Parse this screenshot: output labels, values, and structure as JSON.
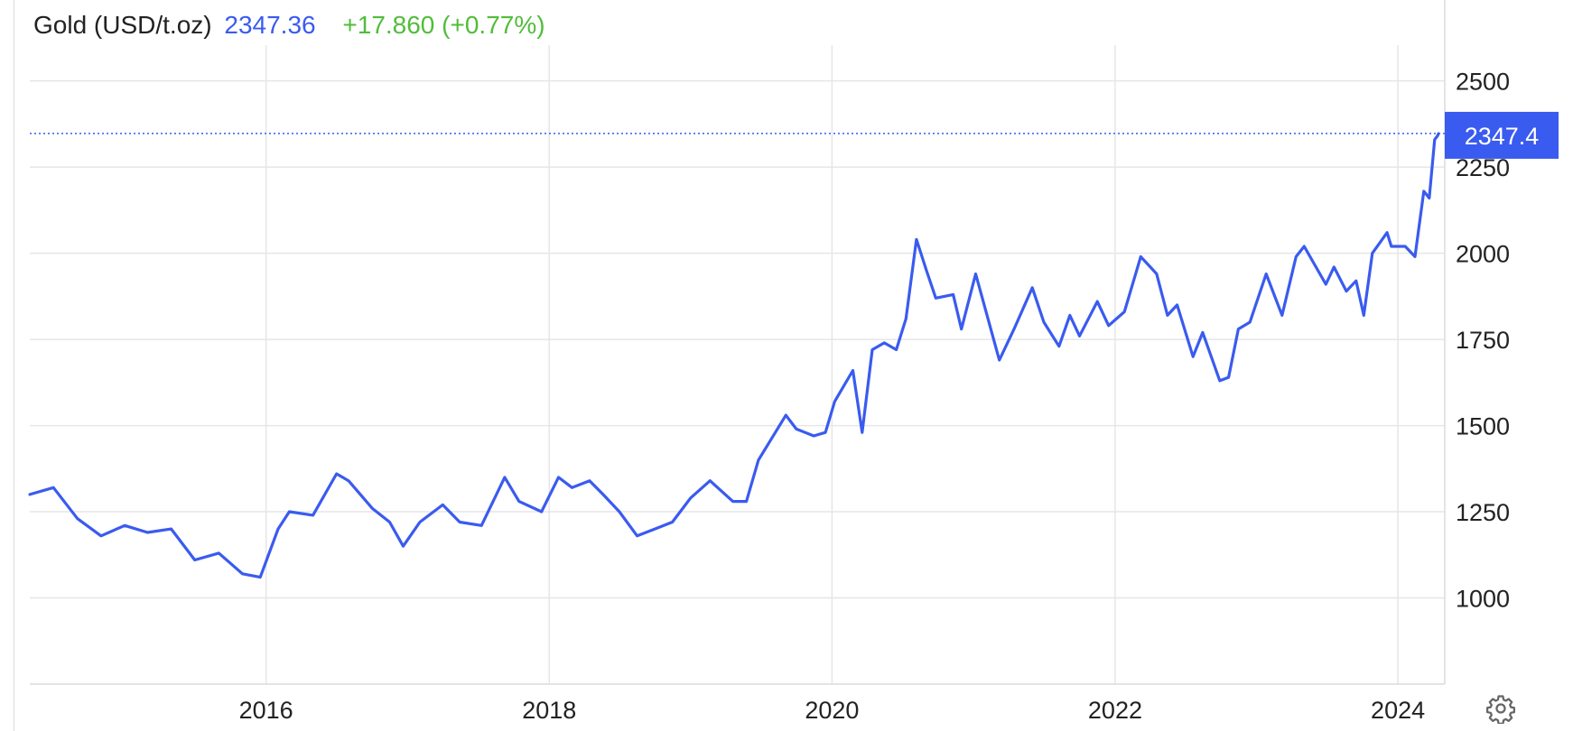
{
  "header": {
    "name": "Gold (USD/t.oz)",
    "price": "2347.36",
    "change": "+17.860 (+0.77%)"
  },
  "last_price_label": "2347.4",
  "settings_icon": "gear-icon",
  "colors": {
    "line": "#3a5bef",
    "change_positive": "#51bd3a",
    "grid": "#e6e6e6",
    "price_tag": "#3a5bef"
  },
  "chart_data": {
    "type": "line",
    "title": "",
    "xlabel": "",
    "ylabel": "",
    "x_ticks": [
      "2016",
      "2018",
      "2020",
      "2022",
      "2024"
    ],
    "y_ticks": [
      1000,
      1250,
      1500,
      1750,
      2000,
      2250,
      2500
    ],
    "xlim": [
      "2014-05-01",
      "2024-05-01"
    ],
    "ylim": [
      750,
      2630
    ],
    "grid": true,
    "last_value": 2347.4,
    "series": [
      {
        "name": "",
        "x": [
          "2014-05-01",
          "2014-07-01",
          "2014-09-01",
          "2014-11-01",
          "2015-01-01",
          "2015-03-01",
          "2015-05-01",
          "2015-07-01",
          "2015-09-01",
          "2015-11-01",
          "2015-12-17",
          "2016-02-01",
          "2016-03-01",
          "2016-05-01",
          "2016-07-01",
          "2016-08-01",
          "2016-10-01",
          "2016-11-15",
          "2016-12-20",
          "2017-02-01",
          "2017-04-01",
          "2017-05-15",
          "2017-07-10",
          "2017-09-08",
          "2017-10-15",
          "2017-12-12",
          "2018-01-25",
          "2018-03-01",
          "2018-04-15",
          "2018-05-20",
          "2018-07-01",
          "2018-08-16",
          "2018-10-01",
          "2018-11-15",
          "2019-01-01",
          "2019-02-20",
          "2019-04-20",
          "2019-05-25",
          "2019-06-25",
          "2019-09-04",
          "2019-10-01",
          "2019-11-15",
          "2019-12-15",
          "2020-01-08",
          "2020-02-24",
          "2020-03-19",
          "2020-04-14",
          "2020-05-15",
          "2020-06-15",
          "2020-07-10",
          "2020-08-06",
          "2020-09-01",
          "2020-09-25",
          "2020-11-09",
          "2020-11-30",
          "2021-01-06",
          "2021-03-08",
          "2021-04-15",
          "2021-06-01",
          "2021-07-01",
          "2021-08-09",
          "2021-09-06",
          "2021-10-01",
          "2021-11-16",
          "2021-12-15",
          "2022-01-25",
          "2022-03-08",
          "2022-04-18",
          "2022-05-16",
          "2022-06-10",
          "2022-07-21",
          "2022-08-15",
          "2022-09-28",
          "2022-10-21",
          "2022-11-15",
          "2022-12-15",
          "2023-01-26",
          "2023-03-08",
          "2023-04-13",
          "2023-05-04",
          "2023-06-29",
          "2023-07-20",
          "2023-08-21",
          "2023-09-15",
          "2023-10-05",
          "2023-10-27",
          "2023-12-04",
          "2023-12-15",
          "2024-01-20",
          "2024-02-14",
          "2024-03-08",
          "2024-03-22",
          "2024-04-05",
          "2024-04-12",
          "2024-04-15"
        ],
        "values": [
          1300,
          1320,
          1230,
          1180,
          1210,
          1190,
          1200,
          1110,
          1130,
          1070,
          1060,
          1200,
          1250,
          1240,
          1360,
          1340,
          1260,
          1220,
          1150,
          1220,
          1270,
          1220,
          1210,
          1350,
          1280,
          1250,
          1350,
          1320,
          1340,
          1300,
          1250,
          1180,
          1200,
          1220,
          1290,
          1340,
          1280,
          1280,
          1400,
          1530,
          1490,
          1470,
          1480,
          1570,
          1660,
          1480,
          1720,
          1740,
          1720,
          1810,
          2040,
          1950,
          1870,
          1880,
          1780,
          1940,
          1690,
          1780,
          1900,
          1800,
          1730,
          1820,
          1760,
          1860,
          1790,
          1830,
          1990,
          1940,
          1820,
          1850,
          1700,
          1770,
          1630,
          1640,
          1780,
          1800,
          1940,
          1820,
          1990,
          2020,
          1910,
          1960,
          1890,
          1920,
          1820,
          2000,
          2060,
          2020,
          2020,
          1990,
          2180,
          2160,
          2330,
          2340,
          2347
        ]
      }
    ]
  }
}
